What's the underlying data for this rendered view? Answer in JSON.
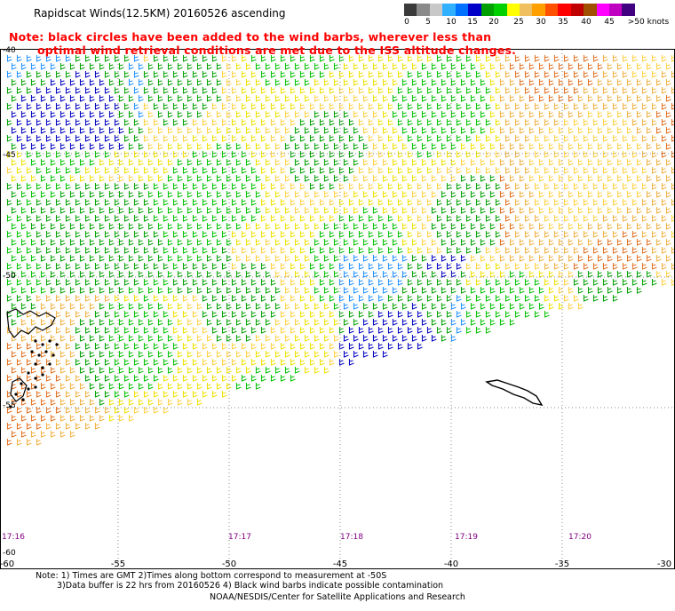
{
  "title": "Rapidscat Winds(12.5KM) 20160526 ascending",
  "notes": {
    "line1": "Note: black circles have been added to the wind barbs, wherever less than",
    "line2": "optimal wind retrieval conditions are met due to the ISS altitude changes."
  },
  "colorbar": {
    "colors": [
      "#3a3a3a",
      "#8a8a8a",
      "#c8c8c8",
      "#30b0ff",
      "#0070ff",
      "#0000c8",
      "#00a000",
      "#00d000",
      "#ffff00",
      "#f0c060",
      "#ffa000",
      "#ff5000",
      "#ff0000",
      "#c00000",
      "#a05000",
      "#ff00ff",
      "#c000c0",
      "#400080"
    ],
    "labels": [
      "0",
      "5",
      "10",
      "15",
      "20",
      "25",
      "30",
      "35",
      "40",
      "45",
      ">50 knots"
    ]
  },
  "axes": {
    "x_ticks": [
      "-60",
      "-55",
      "-50",
      "-45",
      "-40",
      "-35",
      "-30"
    ],
    "y_ticks": [
      "-40",
      "-45",
      "-50",
      "-55",
      "-60"
    ],
    "times": [
      "17:16",
      "17:17",
      "17:18",
      "17:19",
      "17:20"
    ]
  },
  "footer": {
    "line1": "Note: 1) Times are GMT 2)Times along bottom correspond to measurement at -50S",
    "line2": "3)Data buffer is 22 hrs from 20160526 4) Black wind barbs indicate possible contamination",
    "line3": "NOAA/NESDIS/Center for Satellite Applications and Research"
  },
  "map_features": {
    "wind_barb_palette": [
      "#00a000",
      "#00c000",
      "#f0e000",
      "#ffd040",
      "#f0b040",
      "#e07020",
      "#0000c0",
      "#1e90ff"
    ],
    "islands": [
      "falkland-islands",
      "south-georgia"
    ]
  }
}
